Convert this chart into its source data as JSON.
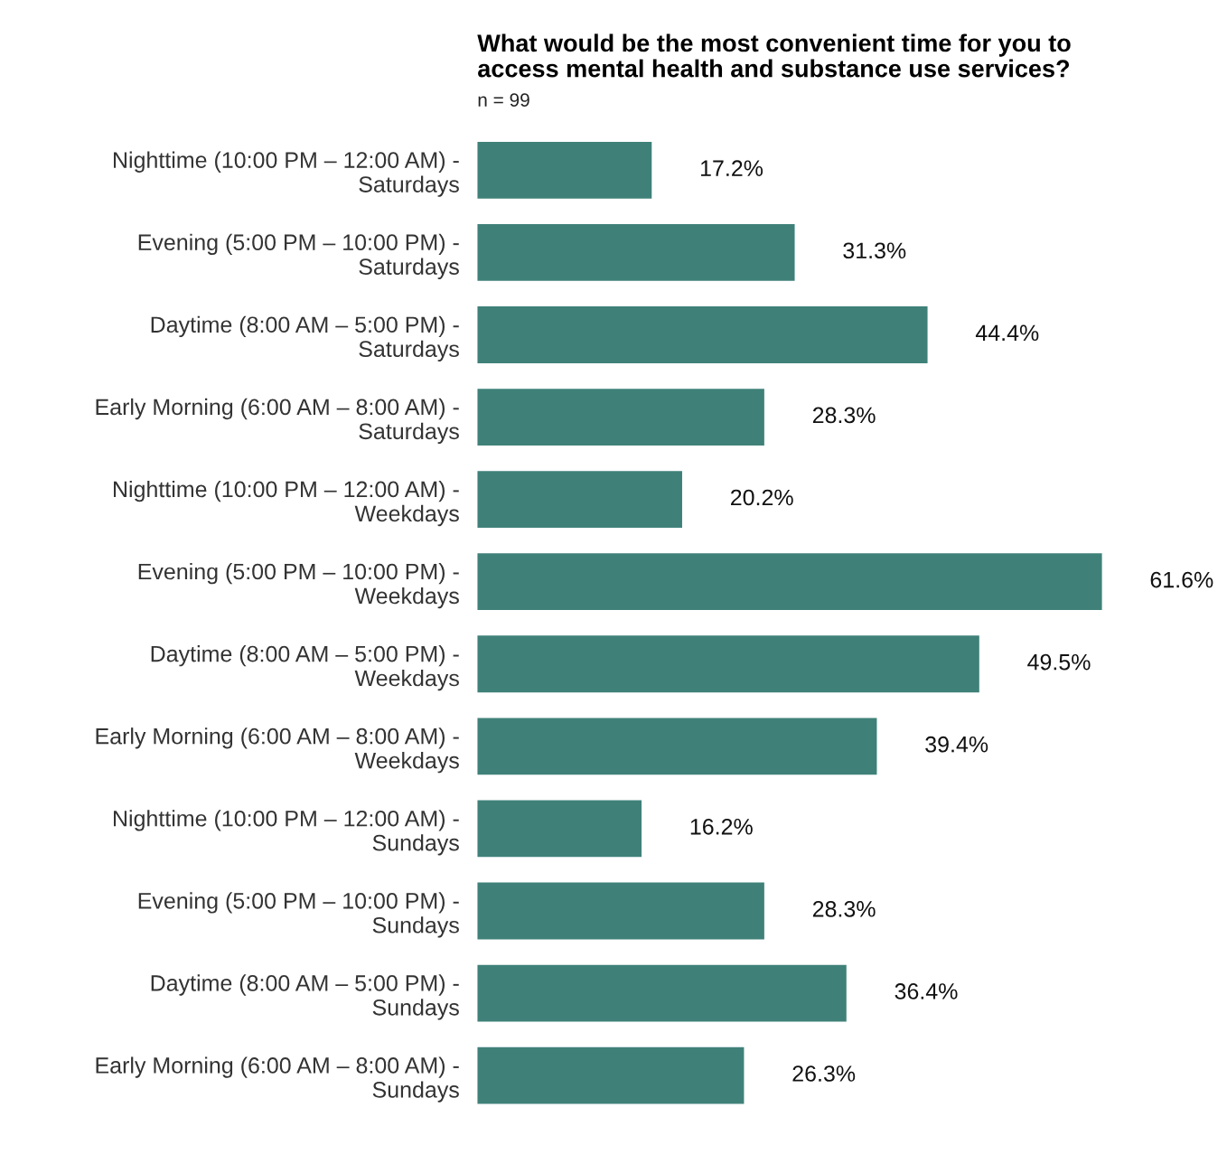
{
  "chart_data": {
    "type": "bar",
    "orientation": "horizontal",
    "title": "What would be the most convenient time for you to\naccess mental health and substance use services?",
    "subtitle": "n = 99",
    "categories": [
      "Nighttime (10:00 PM – 12:00 AM) -\nSaturdays",
      "Evening (5:00 PM – 10:00 PM) -\nSaturdays",
      "Daytime (8:00 AM – 5:00 PM) -\nSaturdays",
      "Early Morning (6:00 AM – 8:00 AM) -\nSaturdays",
      "Nighttime (10:00 PM – 12:00 AM) -\nWeekdays",
      "Evening (5:00 PM – 10:00 PM) -\nWeekdays",
      "Daytime (8:00 AM – 5:00 PM) -\nWeekdays",
      "Early Morning (6:00 AM – 8:00 AM) -\nWeekdays",
      "Nighttime (10:00 PM – 12:00 AM) -\nSundays",
      "Evening (5:00 PM – 10:00 PM) -\nSundays",
      "Daytime (8:00 AM – 5:00 PM) -\nSundays",
      "Early Morning (6:00 AM – 8:00 AM) -\nSundays"
    ],
    "values": [
      17.2,
      31.3,
      44.4,
      28.3,
      20.2,
      61.6,
      49.5,
      39.4,
      16.2,
      28.3,
      36.4,
      26.3
    ],
    "value_labels": [
      "17.2%",
      "31.3%",
      "44.4%",
      "28.3%",
      "20.2%",
      "61.6%",
      "49.5%",
      "39.4%",
      "16.2%",
      "28.3%",
      "36.4%",
      "26.3%"
    ],
    "color": "#3f8179",
    "grid": false,
    "legend": false
  }
}
